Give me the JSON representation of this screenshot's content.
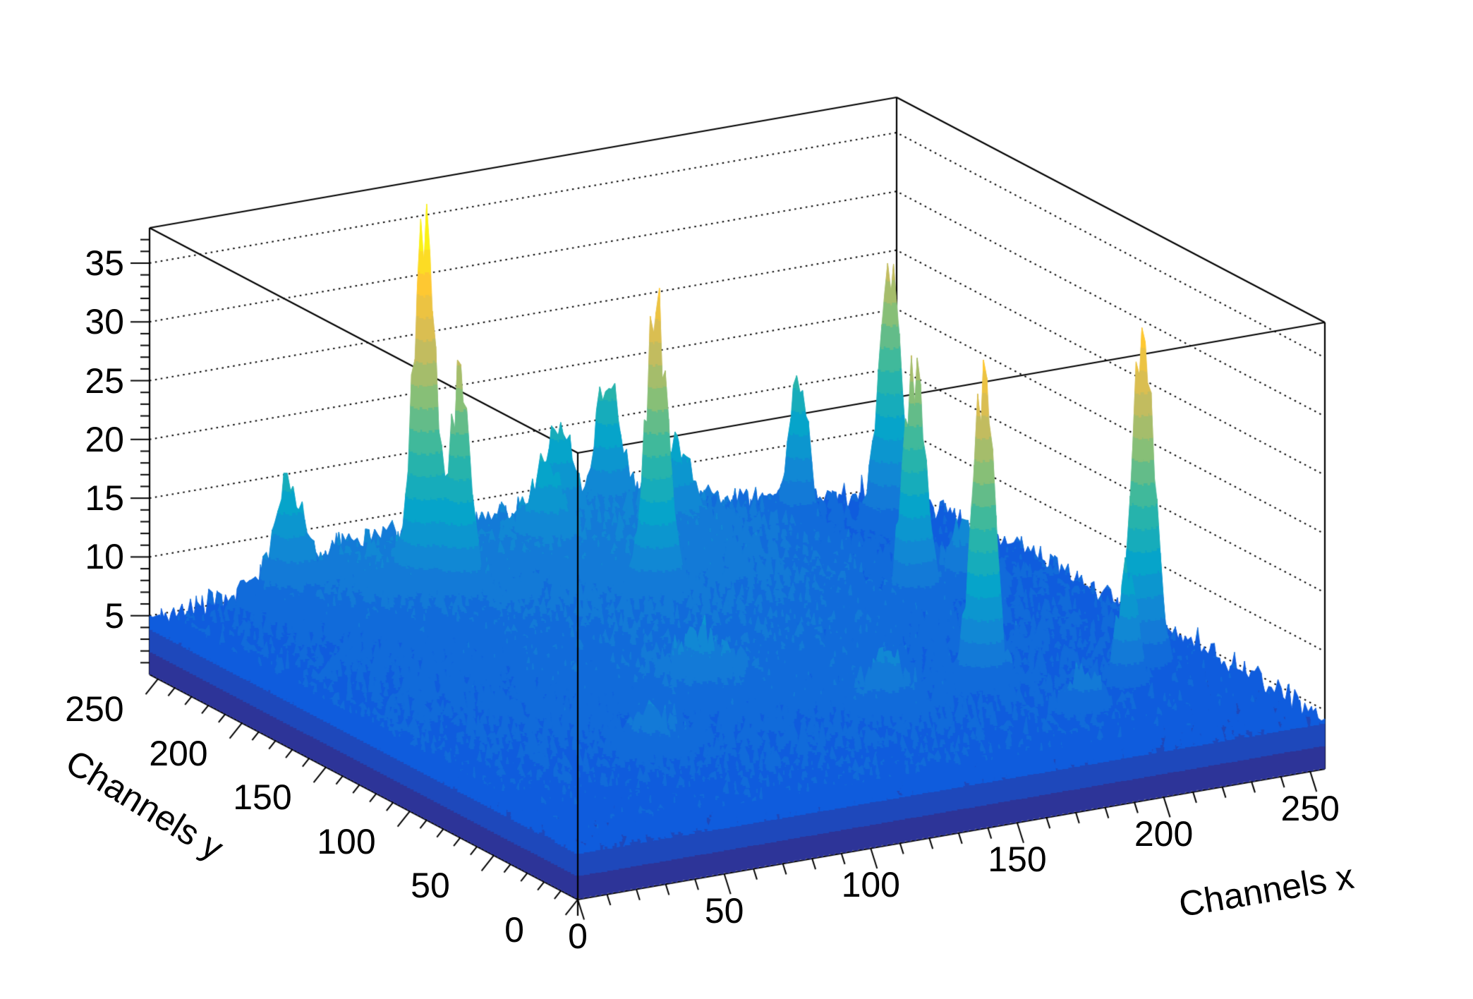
{
  "page": {
    "background_color": "#ffffff",
    "frame_color": "#000000"
  },
  "chart_data": {
    "type": "surface3d",
    "title": "",
    "xlabel": "Channels x",
    "ylabel": "Channels y",
    "zlabel": "",
    "x_range": [
      0,
      255
    ],
    "y_range": [
      0,
      255
    ],
    "z_range": [
      0,
      38
    ],
    "x_ticks": [
      0,
      50,
      100,
      150,
      200,
      250
    ],
    "y_ticks": [
      0,
      50,
      100,
      150,
      200,
      250
    ],
    "z_ticks": [
      5,
      10,
      15,
      20,
      25,
      30,
      35
    ],
    "x_minor_step": 10,
    "y_minor_step": 10,
    "z_minor_step": 1,
    "grid": {
      "back_wall_z_gridlines": "dotted",
      "legend": "none"
    },
    "palette_name": "ROOT-kBird",
    "palette_anchors": [
      "#352A87",
      "#0F5CDD",
      "#1481D6",
      "#06A4CA",
      "#2EB7A4",
      "#87BF77",
      "#D1BB59",
      "#FEC832",
      "#F9FB0E"
    ],
    "contour_levels": 20,
    "background_noise": {
      "base": 2.0,
      "uniform_amp": 2.6,
      "uniform2_amp": 1.3,
      "dome_amp": 3.2,
      "dome_center_x": 120,
      "dome_center_y": 135,
      "dome_sigma": 100,
      "seed": 20249
    },
    "peaks": [
      {
        "x": 71,
        "y": 215,
        "height": 33,
        "sigma": 3.2
      },
      {
        "x": 78,
        "y": 206,
        "height": 20,
        "sigma": 2.8
      },
      {
        "x": 39,
        "y": 240,
        "height": 9,
        "sigma": 4.0
      },
      {
        "x": 129,
        "y": 178,
        "height": 25,
        "sigma": 3.2
      },
      {
        "x": 230,
        "y": 215,
        "height": 23,
        "sigma": 3.4
      },
      {
        "x": 198,
        "y": 145,
        "height": 21,
        "sigma": 3.2
      },
      {
        "x": 177,
        "y": 67,
        "height": 28,
        "sigma": 3.2
      },
      {
        "x": 229,
        "y": 63,
        "height": 30,
        "sigma": 3.4
      },
      {
        "x": 214,
        "y": 46,
        "height": 12,
        "sigma": 2.8
      },
      {
        "x": 208,
        "y": 231,
        "height": 13,
        "sigma": 3.0
      },
      {
        "x": 154,
        "y": 250,
        "height": 11,
        "sigma": 3.6
      },
      {
        "x": 133,
        "y": 243,
        "height": 8,
        "sigma": 4.0
      },
      {
        "x": 118,
        "y": 225,
        "height": 6,
        "sigma": 5.0
      },
      {
        "x": 163,
        "y": 228,
        "height": 6,
        "sigma": 5.0
      },
      {
        "x": 220,
        "y": 152,
        "height": 5,
        "sigma": 6.0
      },
      {
        "x": 100,
        "y": 100,
        "height": 4,
        "sigma": 8.0
      },
      {
        "x": 140,
        "y": 62,
        "height": 4,
        "sigma": 6.0
      },
      {
        "x": 60,
        "y": 60,
        "height": 3,
        "sigma": 7.0
      },
      {
        "x": 190,
        "y": 30,
        "height": 4,
        "sigma": 5.0
      },
      {
        "x": 140,
        "y": 235,
        "height": 3.5,
        "sigma": 45.0
      },
      {
        "x": 60,
        "y": 235,
        "height": 3,
        "sigma": 25.0
      }
    ]
  }
}
